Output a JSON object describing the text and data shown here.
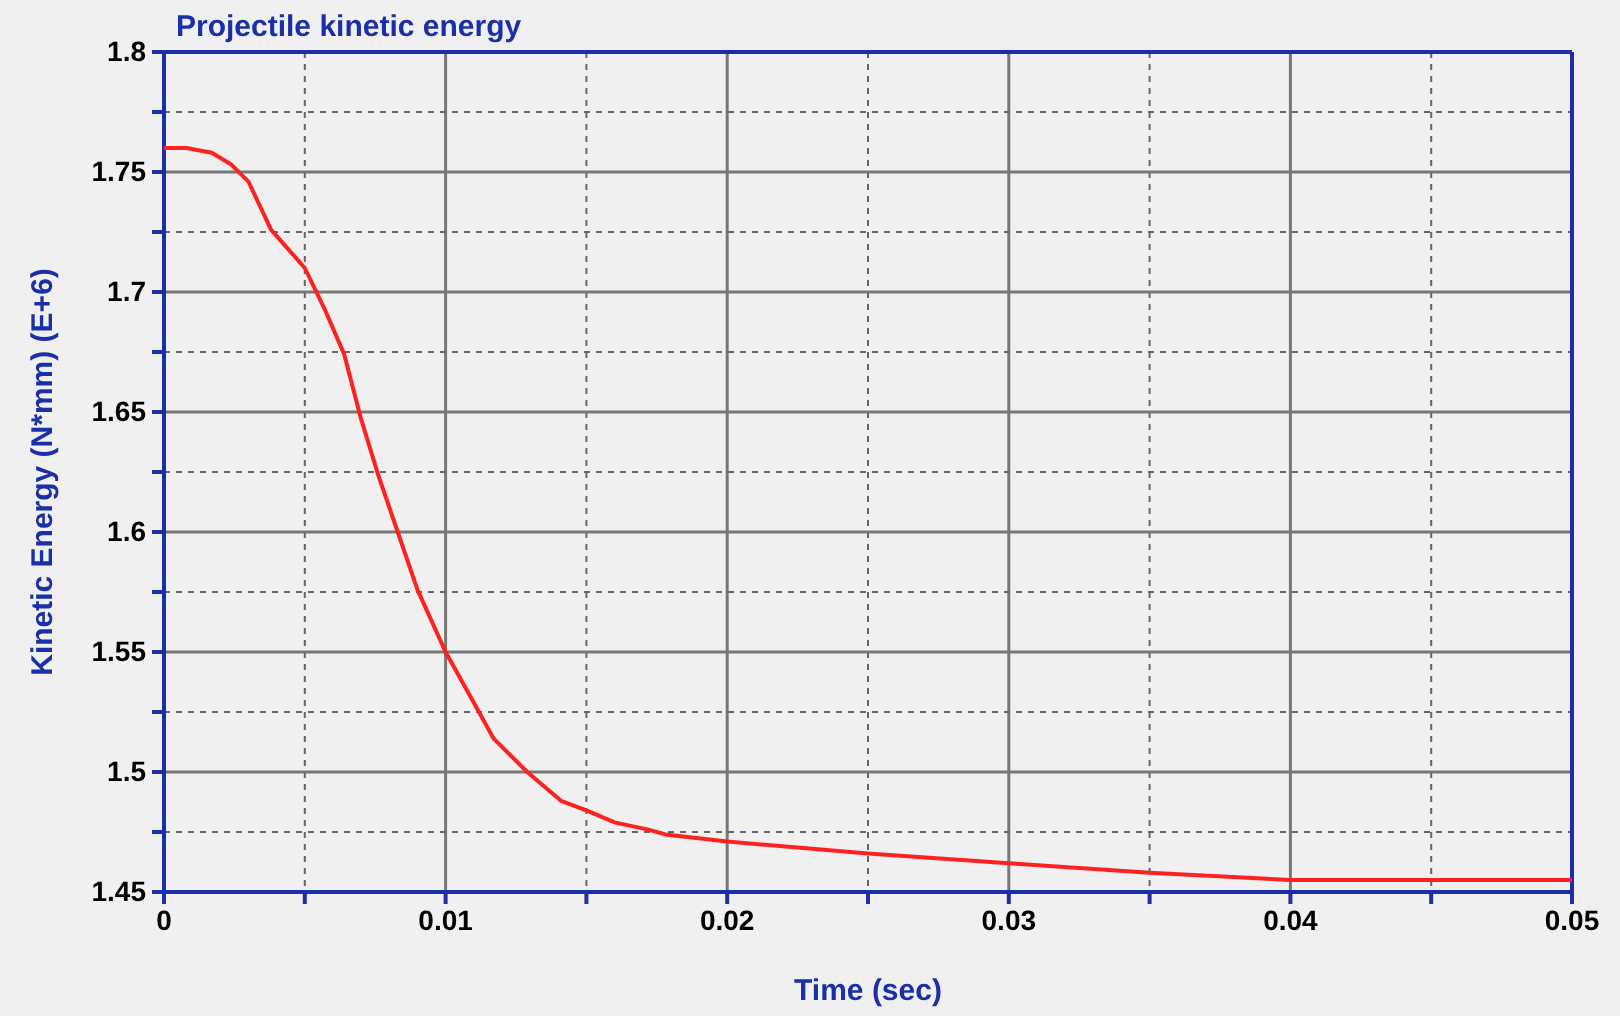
{
  "chart_data": {
    "type": "line",
    "title": "Projectile kinetic energy",
    "xlabel": "Time (sec)",
    "ylabel": "Kinetic Energy (N*mm) (E+6)",
    "xlim": [
      0,
      0.05
    ],
    "ylim": [
      1.45,
      1.8
    ],
    "xticks": [
      0,
      {
        "value": 0.005,
        "label": null
      },
      0.01,
      {
        "value": 0.015,
        "label": null
      },
      0.02,
      {
        "value": 0.025,
        "label": null
      },
      0.03,
      {
        "value": 0.035,
        "label": null
      },
      0.04,
      {
        "value": 0.045,
        "label": null
      },
      0.05
    ],
    "yticks": [
      1.45,
      {
        "value": 1.475,
        "label": null
      },
      1.5,
      {
        "value": 1.525,
        "label": null
      },
      1.55,
      {
        "value": 1.575,
        "label": null
      },
      1.6,
      {
        "value": 1.625,
        "label": null
      },
      1.65,
      {
        "value": 1.675,
        "label": null
      },
      1.7,
      {
        "value": 1.725,
        "label": null
      },
      1.75,
      {
        "value": 1.775,
        "label": null
      },
      1.8
    ],
    "grid": true,
    "marker": "none",
    "line_style": "solid",
    "series": [
      {
        "color": "#ff2020",
        "x": [
          0,
          0.0008,
          0.0017,
          0.0024,
          0.003,
          0.0038,
          0.005,
          0.0057,
          0.0064,
          0.007,
          0.0076,
          0.0083,
          0.009,
          0.01,
          0.011,
          0.0117,
          0.0129,
          0.0141,
          0.015,
          0.016,
          0.0172,
          0.0178,
          0.02,
          0.025,
          0.03,
          0.035,
          0.04,
          0.05
        ],
        "values": [
          1.76,
          1.76,
          1.758,
          1.753,
          1.746,
          1.726,
          1.71,
          1.693,
          1.674,
          1.647,
          1.624,
          1.6,
          1.576,
          1.55,
          1.529,
          1.514,
          1.5,
          1.488,
          1.484,
          1.479,
          1.476,
          1.474,
          1.471,
          1.466,
          1.462,
          1.458,
          1.455,
          1.455
        ]
      }
    ]
  }
}
